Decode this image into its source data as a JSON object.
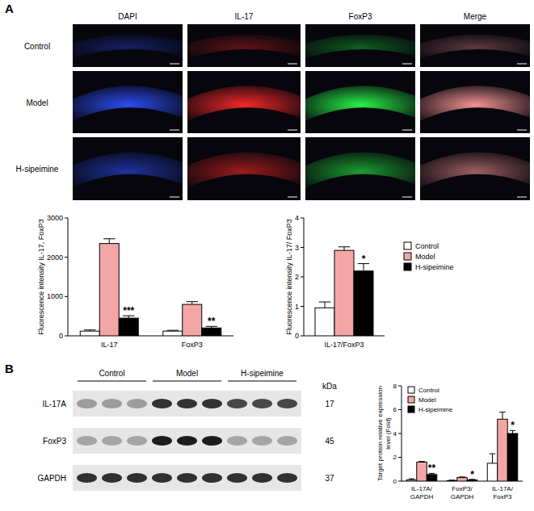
{
  "figure": {
    "panel_labels": [
      "A",
      "B"
    ],
    "image_columns": [
      "DAPI",
      "IL-17",
      "FoxP3",
      "Merge"
    ],
    "image_rows": [
      "Control",
      "Model",
      "H-sipeimine"
    ],
    "blot": {
      "groups": [
        "Control",
        "Model",
        "H-sipeimine"
      ],
      "proteins": [
        "IL-17A",
        "FoxP3",
        "GAPDH"
      ],
      "kda_header": "kDa",
      "kda": [
        17,
        45,
        37
      ]
    }
  },
  "chart_data": [
    {
      "type": "bar",
      "y_label": "Fluorescence intensity IL-17, FoxP3",
      "categories": [
        "IL-17",
        "FoxP3"
      ],
      "series": [
        {
          "name": "Control",
          "color": "#ffffff",
          "values": [
            120,
            120
          ],
          "errors": [
            30,
            20
          ]
        },
        {
          "name": "Model",
          "color": "#f4a6a6",
          "values": [
            2350,
            800
          ],
          "errors": [
            120,
            70
          ]
        },
        {
          "name": "H-sipeimine",
          "color": "#000000",
          "values": [
            450,
            200
          ],
          "errors": [
            60,
            40
          ],
          "significance": [
            "***",
            "**"
          ]
        }
      ],
      "ylim": [
        0,
        3000
      ],
      "yticks": [
        0,
        1000,
        2000,
        3000
      ]
    },
    {
      "type": "bar",
      "y_label": "Fluorescence intensity IL-17/ FoxP3",
      "categories": [
        "IL-17/FoxP3"
      ],
      "series": [
        {
          "name": "Control",
          "color": "#ffffff",
          "values": [
            0.95
          ],
          "errors": [
            0.2
          ]
        },
        {
          "name": "Model",
          "color": "#f4a6a6",
          "values": [
            2.9
          ],
          "errors": [
            0.12
          ]
        },
        {
          "name": "H-sipeimine",
          "color": "#000000",
          "values": [
            2.2
          ],
          "errors": [
            0.25
          ],
          "significance": [
            "*"
          ]
        }
      ],
      "ylim": [
        0,
        4
      ],
      "yticks": [
        0,
        1,
        2,
        3,
        4
      ],
      "legend": "right"
    },
    {
      "type": "bar",
      "y_label": "Target protein relative expression level (Fold)",
      "categories": [
        "IL-17A/GAPDH",
        "FoxP3/GAPDH",
        "IL-17A/FoxP3"
      ],
      "series": [
        {
          "name": "Control",
          "color": "#ffffff",
          "values": [
            0.1,
            0.05,
            1.5
          ],
          "errors": [
            0.1,
            0.03,
            0.8
          ]
        },
        {
          "name": "Model",
          "color": "#f4a6a6",
          "values": [
            1.6,
            0.3,
            5.2
          ],
          "errors": [
            0.05,
            0.05,
            0.6
          ]
        },
        {
          "name": "H-sipeimine",
          "color": "#000000",
          "values": [
            0.55,
            0.1,
            4.0
          ],
          "errors": [
            0.1,
            0.05,
            0.25
          ],
          "significance": [
            "**",
            "*",
            "*"
          ]
        }
      ],
      "ylim": [
        0,
        8
      ],
      "yticks": [
        0,
        2,
        4,
        6,
        8
      ],
      "legend": "top-left"
    }
  ]
}
